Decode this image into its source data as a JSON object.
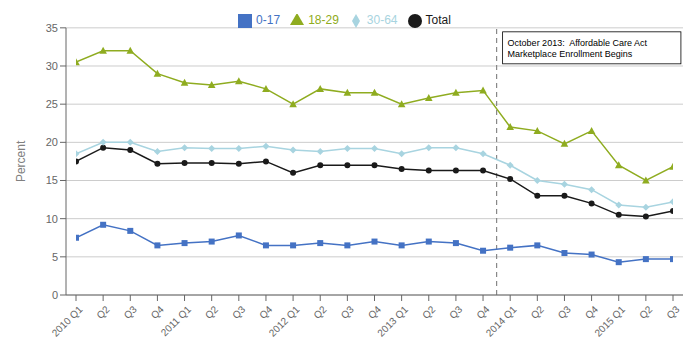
{
  "chart_data": {
    "type": "line",
    "categories": [
      "2010 Q1",
      "Q2",
      "Q3",
      "Q4",
      "2011 Q1",
      "Q2",
      "Q3",
      "Q4",
      "2012 Q1",
      "Q2",
      "Q3",
      "Q4",
      "2013 Q1",
      "Q2",
      "Q3",
      "Q4",
      "2014 Q1",
      "Q2",
      "Q3",
      "Q4",
      "2015 Q1",
      "Q2",
      "Q3"
    ],
    "series": [
      {
        "name": "Total",
        "color": "#1a1a1a",
        "marker": "circle",
        "values": [
          17.5,
          19.3,
          19.0,
          17.2,
          17.3,
          17.3,
          17.2,
          17.5,
          16.0,
          17.0,
          17.0,
          17.0,
          16.5,
          16.3,
          16.3,
          16.3,
          15.2,
          13.0,
          13.0,
          12.0,
          10.5,
          10.3,
          11.0
        ]
      },
      {
        "name": "0-17",
        "color": "#4472C4",
        "marker": "square",
        "values": [
          7.5,
          9.2,
          8.4,
          6.5,
          6.8,
          7.0,
          7.8,
          6.5,
          6.5,
          6.8,
          6.5,
          7.0,
          6.5,
          7.0,
          6.8,
          5.8,
          6.2,
          6.5,
          5.5,
          5.3,
          4.3,
          4.7,
          4.7
        ]
      },
      {
        "name": "18-29",
        "color": "#8fac20",
        "marker": "triangle",
        "values": [
          30.5,
          32.0,
          32.0,
          29.0,
          27.8,
          27.5,
          28.0,
          27.0,
          25.0,
          27.0,
          26.5,
          26.5,
          25.0,
          25.8,
          26.5,
          26.8,
          22.0,
          21.5,
          19.8,
          21.5,
          17.0,
          15.0,
          16.8
        ]
      },
      {
        "name": "30-64",
        "color": "#A8D4E0",
        "marker": "diamond",
        "values": [
          18.5,
          20.0,
          20.0,
          18.8,
          19.3,
          19.2,
          19.2,
          19.5,
          19.0,
          18.8,
          19.2,
          19.2,
          18.5,
          19.3,
          19.3,
          18.5,
          17.0,
          15.0,
          14.5,
          13.8,
          11.8,
          11.5,
          12.2
        ]
      }
    ],
    "ylabel": "Percent",
    "ylim": [
      0,
      35
    ],
    "yticks": [
      0,
      5,
      10,
      15,
      20,
      25,
      30,
      35
    ],
    "grid": true,
    "legend": "top",
    "annotations": [
      {
        "text": "October 2013:  Affordable Care Act\nMarketplace Enrollment Begins",
        "x": 15.5,
        "line_style": "dashed"
      }
    ]
  }
}
